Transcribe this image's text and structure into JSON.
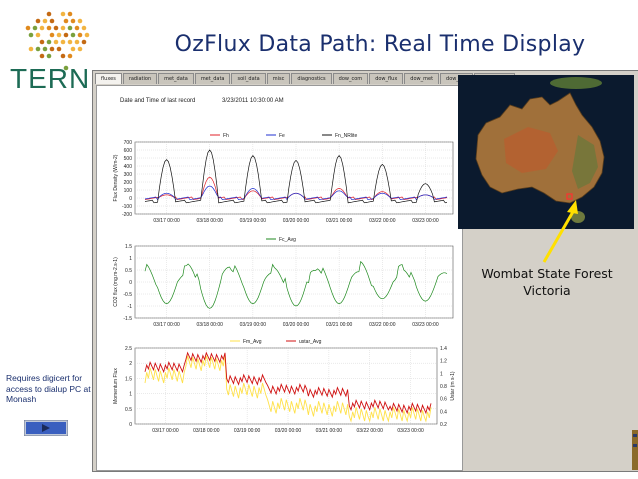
{
  "slide": {
    "title": "OzFlux Data Path: Real Time Display",
    "logo_text": "TERN",
    "side_note": "Requires digicert for access to dialup PC at Monash",
    "map_label_line1": "Wombat State Forest",
    "map_label_line2": "Victoria"
  },
  "app": {
    "tabs": [
      "fluxes",
      "radiation",
      "met_data",
      "met_data",
      "soil_data",
      "misc",
      "diagnostics",
      "dow_com",
      "dow_flux",
      "dow_met",
      "dow_rad",
      "dow_extras"
    ],
    "active_tab": 0,
    "date_caption": "Date and Time of last record",
    "date_value": "3/23/2011 10:30:00 AM"
  },
  "colors": {
    "title": "#1a2f6e",
    "fh": "#e0202a",
    "fe": "#2030d0",
    "fn": "#111111",
    "fc": "#1f8a1f",
    "fm": "#ffe14a",
    "ustar": "#d01010",
    "arrow": "#ffe000",
    "logo_text": "#1d6b55"
  },
  "chart_data": [
    {
      "type": "line",
      "title": "",
      "ylabel": "Flux Density (W/m-2)",
      "ylim": [
        -200,
        700
      ],
      "yticks": [
        -200,
        -100,
        0,
        100,
        200,
        300,
        400,
        500,
        600,
        700
      ],
      "x": [
        "03/17 00:00",
        "03/18 00:00",
        "03/19 00:00",
        "03/20 00:00",
        "03/21 00:00",
        "03/22 00:00",
        "03/23 00:00"
      ],
      "series": [
        {
          "name": "Fh",
          "peaks": [
            40,
            260,
            90,
            60,
            120,
            80,
            40
          ]
        },
        {
          "name": "Fe",
          "peaks": [
            60,
            150,
            120,
            60,
            90,
            60,
            40
          ]
        },
        {
          "name": "Fn_NRlite",
          "peaks": [
            480,
            600,
            530,
            470,
            530,
            420,
            180
          ]
        }
      ]
    },
    {
      "type": "line",
      "title": "",
      "ylabel": "CO2 flux (mg.m-2.s-1)",
      "ylim": [
        -1.5,
        1.5
      ],
      "yticks": [
        -1.5,
        -1,
        -0.5,
        0,
        0.5,
        1,
        1.5
      ],
      "x": [
        "03/17 00:00",
        "03/18 00:00",
        "03/19 00:00",
        "03/20 00:00",
        "03/21 00:00",
        "03/22 00:00",
        "03/23 00:00"
      ],
      "series": [
        {
          "name": "Fc_Avg",
          "day_min": [
            -0.9,
            -1.1,
            -0.9,
            -1.0,
            -0.9,
            -0.7,
            -0.8
          ],
          "night_max": [
            0.6,
            0.7,
            0.6,
            0.5,
            0.6,
            0.7,
            0.5
          ]
        }
      ]
    },
    {
      "type": "line",
      "title": "",
      "ylabel": "Momentum Flux",
      "y2label": "Ustar (m s-1)",
      "ylim": [
        0,
        2.5
      ],
      "yticks": [
        0,
        0.5,
        1,
        1.5,
        2,
        2.5
      ],
      "y2lim": [
        0.2,
        1.4
      ],
      "y2ticks": [
        0.2,
        0.4,
        0.6,
        0.8,
        1,
        1.2,
        1.4
      ],
      "x": [
        "03/17 00:00",
        "03/18 00:00",
        "03/19 00:00",
        "03/20 00:00",
        "03/21 00:00",
        "03/22 00:00",
        "03/23 00:00"
      ],
      "series": [
        {
          "name": "Fm_Avg",
          "levels": [
            1.6,
            2.0,
            1.1,
            0.6,
            0.5,
            0.3,
            0.3
          ]
        },
        {
          "name": "ustar_Avg",
          "levels": [
            1.1,
            1.25,
            0.9,
            0.75,
            0.7,
            0.5,
            0.45
          ]
        }
      ]
    }
  ]
}
